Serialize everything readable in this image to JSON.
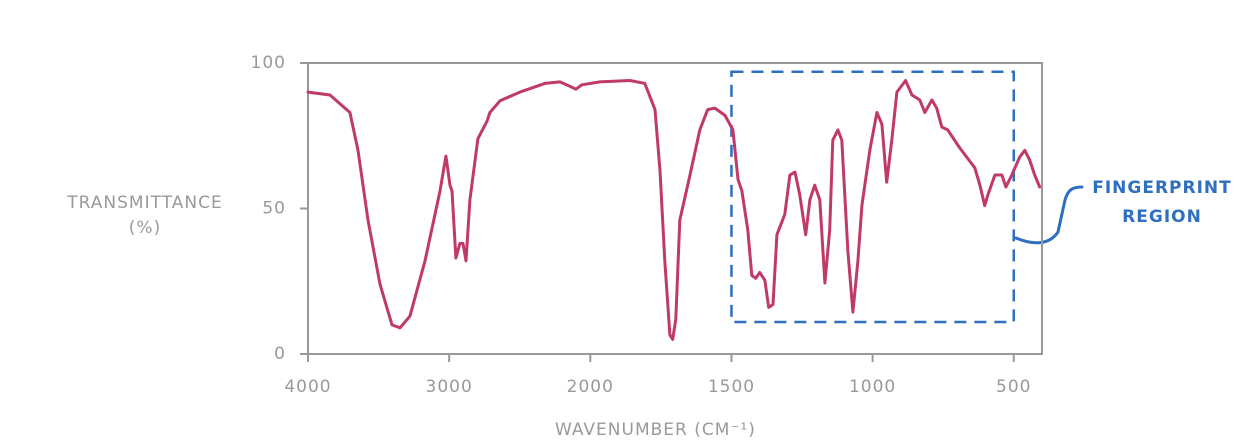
{
  "chart_data": {
    "type": "line",
    "x_label": "WAVENUMBER (CM⁻¹)",
    "y_label": [
      "TRANSMITTANCE",
      "(%)"
    ],
    "xlim": [
      4000,
      400
    ],
    "ylim": [
      0,
      100
    ],
    "x_scale_break": 2000,
    "xticks": [
      4000,
      3000,
      2000,
      1500,
      1000,
      500
    ],
    "yticks": [
      0,
      50,
      100
    ],
    "axis_color": "#999999",
    "series": [
      {
        "color": "#c0396b",
        "x": [
          4000,
          3844,
          3703,
          3646,
          3575,
          3490,
          3405,
          3348,
          3278,
          3171,
          3065,
          3023,
          2994,
          2980,
          2952,
          2924,
          2902,
          2881,
          2853,
          2796,
          2732,
          2711,
          2640,
          2499,
          2322,
          2215,
          2145,
          2102,
          2060,
          1966,
          1860,
          1807,
          1771,
          1753,
          1736,
          1718,
          1708,
          1697,
          1683,
          1647,
          1612,
          1584,
          1559,
          1523,
          1495,
          1477,
          1463,
          1442,
          1428,
          1414,
          1400,
          1382,
          1368,
          1353,
          1339,
          1311,
          1293,
          1275,
          1258,
          1237,
          1222,
          1205,
          1187,
          1169,
          1152,
          1141,
          1123,
          1109,
          1088,
          1070,
          1052,
          1038,
          1010,
          985,
          967,
          950,
          932,
          914,
          883,
          861,
          833,
          815,
          790,
          773,
          755,
          734,
          691,
          638,
          620,
          603,
          592,
          567,
          542,
          528,
          507,
          479,
          461,
          444,
          426,
          408
        ],
        "values": [
          90,
          89,
          83,
          70,
          46,
          24,
          10,
          9,
          13,
          32,
          56,
          68,
          58,
          56,
          33,
          38,
          38,
          32,
          53,
          74,
          80,
          83,
          87,
          90,
          93,
          93.5,
          92,
          91,
          92.5,
          93.5,
          94,
          93,
          84,
          63,
          32,
          6.5,
          5,
          12,
          46,
          61.5,
          77,
          84,
          84.5,
          82,
          77,
          60,
          56,
          42.6,
          27,
          26,
          28,
          25.4,
          16,
          17,
          41,
          48,
          61.5,
          62.5,
          54.6,
          41,
          53,
          58,
          53,
          24.4,
          42.6,
          73.5,
          77,
          73.5,
          35.7,
          14.4,
          32,
          51,
          70,
          83,
          79,
          59,
          73.5,
          90,
          94,
          89,
          87.3,
          83,
          87.3,
          84.5,
          78,
          77,
          70.8,
          64,
          58,
          51,
          54.6,
          61.5,
          61.5,
          57.4,
          61.5,
          67.7,
          70,
          66.7,
          61.5,
          57.4
        ]
      }
    ],
    "region": {
      "xlim": [
        1500,
        500
      ],
      "ylim": [
        11,
        97
      ],
      "color": "#2f6fbf",
      "label": [
        "FINGERPRINT",
        "REGION"
      ]
    }
  }
}
